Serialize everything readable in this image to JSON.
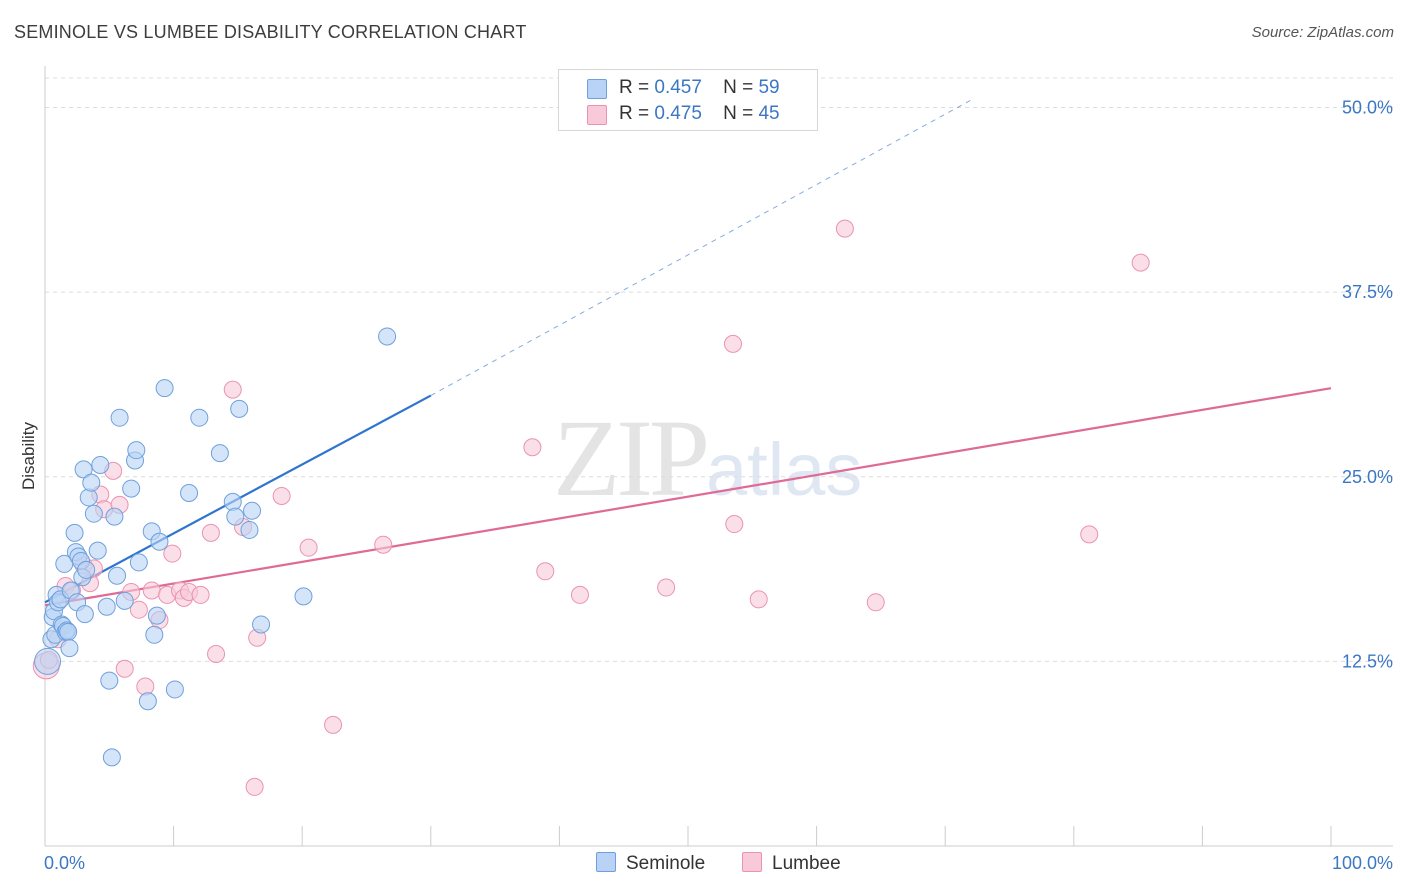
{
  "title": "SEMINOLE VS LUMBEE DISABILITY CORRELATION CHART",
  "source_label": "Source:",
  "source_value": "ZipAtlas.com",
  "watermark": {
    "zip": "ZIP",
    "atlas": "atlas"
  },
  "colors": {
    "seminole_fill": "#b8d3f5",
    "seminole_stroke": "#6fa0dc",
    "seminole_line": "#2f74cf",
    "lumbee_fill": "#f8c9d8",
    "lumbee_stroke": "#ea93b0",
    "lumbee_line": "#e06a96",
    "tick_text": "#3b77c4",
    "grid": "#dcdcdc"
  },
  "legend": {
    "rows": [
      {
        "r_label": "R =",
        "r_value": "0.457",
        "n_label": "N =",
        "n_value": "59"
      },
      {
        "r_label": "R =",
        "r_value": "0.475",
        "n_label": "N =",
        "n_value": "45"
      }
    ]
  },
  "chart_data": {
    "type": "scatter",
    "title": "SEMINOLE VS LUMBEE DISABILITY CORRELATION CHART",
    "xlabel": "",
    "ylabel": "Disability",
    "xlim": [
      0,
      100
    ],
    "ylim": [
      0,
      52
    ],
    "x_tick_labels": [
      "0.0%",
      "100.0%"
    ],
    "y_ticks": [
      12.5,
      25.0,
      37.5,
      50.0
    ],
    "y_tick_labels": [
      "12.5%",
      "25.0%",
      "37.5%",
      "50.0%"
    ],
    "grid": true,
    "legend_position": "top-center",
    "series": [
      {
        "name": "Seminole",
        "r": 0.457,
        "n": 59,
        "trend": {
          "x0": 0,
          "y0": 16.5,
          "x1": 30,
          "y1": 30.5,
          "dashed_to_x": 72,
          "dashed_to_y": 50.5
        },
        "points": [
          [
            0.2,
            12.5
          ],
          [
            0.5,
            14.0
          ],
          [
            0.6,
            15.5
          ],
          [
            0.7,
            15.9
          ],
          [
            0.8,
            14.3
          ],
          [
            0.9,
            17.0
          ],
          [
            1.0,
            16.5
          ],
          [
            1.2,
            16.7
          ],
          [
            1.3,
            15.0
          ],
          [
            1.4,
            14.9
          ],
          [
            1.5,
            19.1
          ],
          [
            1.6,
            14.5
          ],
          [
            1.7,
            14.6
          ],
          [
            1.8,
            14.5
          ],
          [
            1.9,
            13.4
          ],
          [
            2.0,
            17.3
          ],
          [
            2.3,
            21.2
          ],
          [
            2.4,
            19.9
          ],
          [
            2.5,
            16.5
          ],
          [
            2.6,
            19.6
          ],
          [
            2.8,
            19.3
          ],
          [
            2.9,
            18.2
          ],
          [
            3.0,
            25.5
          ],
          [
            3.1,
            15.7
          ],
          [
            3.2,
            18.7
          ],
          [
            3.4,
            23.6
          ],
          [
            3.6,
            24.6
          ],
          [
            3.8,
            22.5
          ],
          [
            4.1,
            20.0
          ],
          [
            4.3,
            25.8
          ],
          [
            4.8,
            16.2
          ],
          [
            5.0,
            11.2
          ],
          [
            5.2,
            6.0
          ],
          [
            5.4,
            22.3
          ],
          [
            5.6,
            18.3
          ],
          [
            5.8,
            29.0
          ],
          [
            6.2,
            16.6
          ],
          [
            6.7,
            24.2
          ],
          [
            7.0,
            26.1
          ],
          [
            7.1,
            26.8
          ],
          [
            7.3,
            19.2
          ],
          [
            8.0,
            9.8
          ],
          [
            8.3,
            21.3
          ],
          [
            8.5,
            14.3
          ],
          [
            8.7,
            15.6
          ],
          [
            8.9,
            20.6
          ],
          [
            9.3,
            31.0
          ],
          [
            10.1,
            10.6
          ],
          [
            11.2,
            23.9
          ],
          [
            12.0,
            29.0
          ],
          [
            13.6,
            26.6
          ],
          [
            14.6,
            23.3
          ],
          [
            14.8,
            22.3
          ],
          [
            15.1,
            29.6
          ],
          [
            15.9,
            21.4
          ],
          [
            16.1,
            22.7
          ],
          [
            16.8,
            15.0
          ],
          [
            20.1,
            16.9
          ],
          [
            26.6,
            34.5
          ]
        ]
      },
      {
        "name": "Lumbee",
        "r": 0.475,
        "n": 45,
        "trend": {
          "x0": 0,
          "y0": 16.3,
          "x1": 100,
          "y1": 31.0
        },
        "points": [
          [
            0.1,
            12.2
          ],
          [
            0.3,
            12.6
          ],
          [
            1.6,
            17.6
          ],
          [
            2.1,
            17.3
          ],
          [
            3.0,
            19.0
          ],
          [
            3.5,
            17.8
          ],
          [
            3.8,
            18.8
          ],
          [
            4.3,
            23.8
          ],
          [
            4.6,
            22.8
          ],
          [
            5.3,
            25.4
          ],
          [
            5.8,
            23.1
          ],
          [
            6.2,
            12.0
          ],
          [
            6.7,
            17.2
          ],
          [
            7.3,
            16.0
          ],
          [
            7.8,
            10.8
          ],
          [
            8.3,
            17.3
          ],
          [
            8.9,
            15.3
          ],
          [
            9.5,
            17.0
          ],
          [
            9.9,
            19.8
          ],
          [
            10.5,
            17.3
          ],
          [
            10.8,
            16.8
          ],
          [
            11.2,
            17.2
          ],
          [
            12.1,
            17.0
          ],
          [
            12.9,
            21.2
          ],
          [
            13.3,
            13.0
          ],
          [
            14.6,
            30.9
          ],
          [
            15.4,
            21.6
          ],
          [
            16.3,
            4.0
          ],
          [
            16.5,
            14.1
          ],
          [
            18.4,
            23.7
          ],
          [
            20.5,
            20.2
          ],
          [
            22.4,
            8.2
          ],
          [
            26.3,
            20.4
          ],
          [
            37.9,
            27.0
          ],
          [
            38.9,
            18.6
          ],
          [
            41.6,
            17.0
          ],
          [
            48.3,
            17.5
          ],
          [
            53.5,
            34.0
          ],
          [
            53.6,
            21.8
          ],
          [
            55.5,
            16.7
          ],
          [
            62.2,
            41.8
          ],
          [
            64.6,
            16.5
          ],
          [
            81.2,
            21.1
          ],
          [
            85.2,
            39.5
          ],
          [
            1.0,
            14.0
          ]
        ]
      }
    ]
  },
  "bottom_legend": [
    {
      "label": "Seminole"
    },
    {
      "label": "Lumbee"
    }
  ]
}
